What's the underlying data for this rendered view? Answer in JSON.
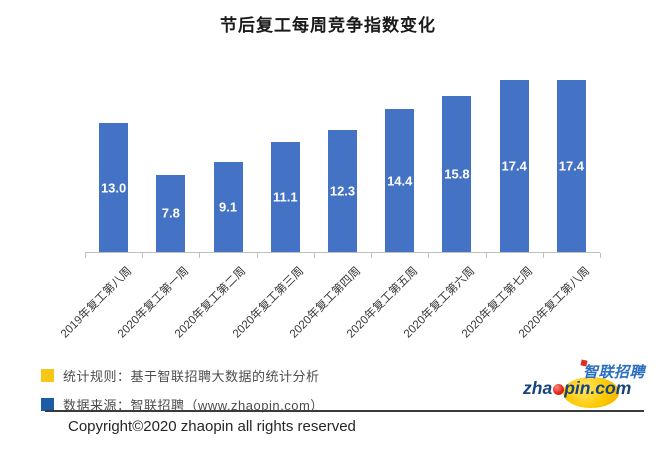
{
  "title": "节后复工每周竞争指数变化",
  "chart_data": {
    "type": "bar",
    "title": "节后复工每周竞争指数变化",
    "categories": [
      "2019年复工第八周",
      "2020年复工第一周",
      "2020年复工第二周",
      "2020年复工第三周",
      "2020年复工第四周",
      "2020年复工第五周",
      "2020年复工第六周",
      "2020年复工第七周",
      "2020年复工第八周"
    ],
    "values": [
      13.0,
      7.8,
      9.1,
      11.1,
      12.3,
      14.4,
      15.8,
      17.4,
      17.4
    ],
    "value_labels": [
      "13.0",
      "7.8",
      "9.1",
      "11.1",
      "12.3",
      "14.4",
      "15.8",
      "17.4",
      "17.4"
    ],
    "xlabel": "",
    "ylabel": "",
    "ylim": [
      0,
      18
    ],
    "grid": false,
    "legend_position": "none",
    "bar_color": "#4472C4",
    "value_label_color": "#FFFFFF",
    "axis_color": "#BFBFBF"
  },
  "legend": {
    "items": [
      {
        "label": "统计规则：基于智联招聘大数据的统计分析",
        "color": "#F6C714"
      },
      {
        "label": "数据来源：智联招聘（www.zhaopin.com）",
        "color": "#1A5DA6"
      }
    ]
  },
  "footer": {
    "copyright": "Copyright©2020 zhaopin all rights reserved"
  },
  "logo": {
    "cn_text": "智联招聘",
    "en_prefix": "zha",
    "en_suffix": "pin.com",
    "accent_red": "#D93025",
    "blue": "#2A6FBF"
  }
}
